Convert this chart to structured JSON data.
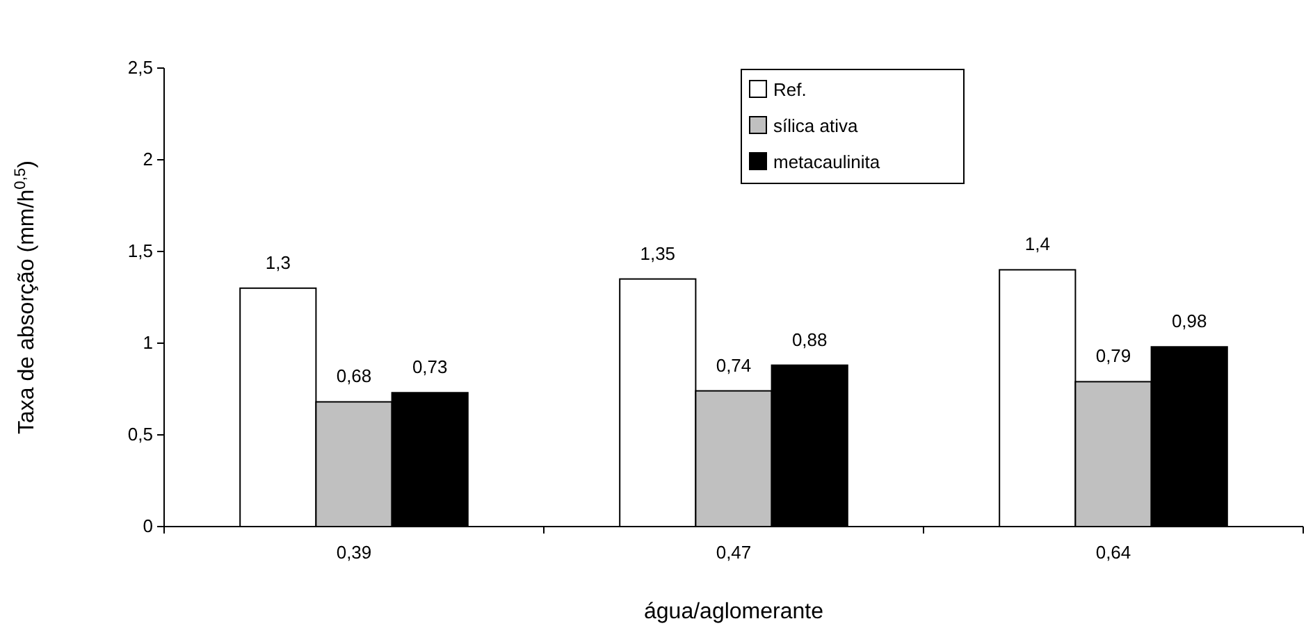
{
  "chart_data": {
    "type": "bar",
    "xlabel": "água/aglomerante",
    "ylabel": "Taxa de absorção (mm/h$^{0,5}$)",
    "categories": [
      "0,39",
      "0,47",
      "0,64"
    ],
    "series": [
      {
        "name": "Ref.",
        "color": "#ffffff",
        "values": [
          1.3,
          1.35,
          1.4
        ],
        "value_labels": [
          "1,3",
          "1,35",
          "1,4"
        ]
      },
      {
        "name": "sílica ativa",
        "color": "#c0c0c0",
        "values": [
          0.68,
          0.74,
          0.79
        ],
        "value_labels": [
          "0,68",
          "0,74",
          "0,79"
        ]
      },
      {
        "name": "metacaulinita",
        "color": "#000000",
        "values": [
          0.73,
          0.88,
          0.98
        ],
        "value_labels": [
          "0,73",
          "0,88",
          "0,98"
        ]
      }
    ],
    "ylim": [
      0,
      2.5
    ],
    "yticks": [
      0,
      {
        "value": 0.5,
        "label": "0,5"
      },
      1,
      {
        "value": 1.5,
        "label": "1,5"
      },
      2,
      {
        "value": 2.5,
        "label": "2,5"
      }
    ],
    "grid": false,
    "legend": "top right"
  }
}
